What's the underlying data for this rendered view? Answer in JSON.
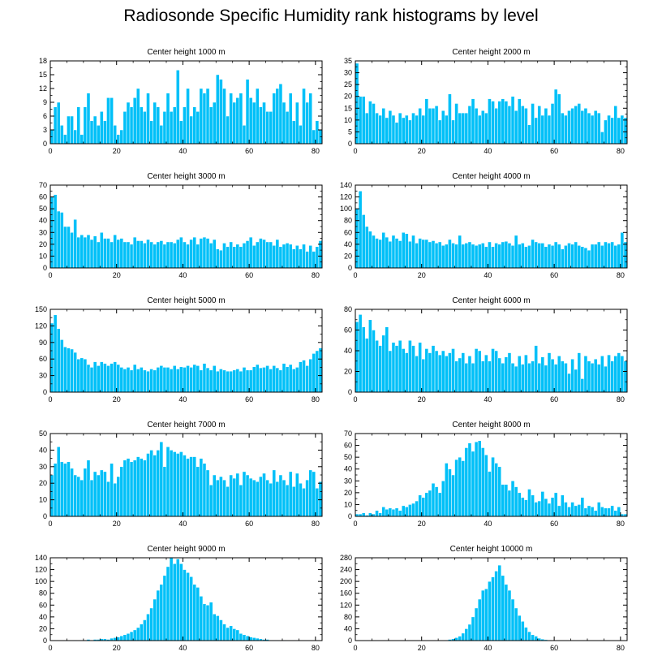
{
  "title": "Radiosonde Specific Humidity rank histograms by level",
  "colors": {
    "bar": "#00c0f8",
    "bar_edge": "#ffffff",
    "axis": "#000000"
  },
  "chart_data": [
    {
      "type": "bar",
      "title": "Center height 1000 m",
      "xlabel": "",
      "ylabel": "",
      "xlim": [
        0,
        82
      ],
      "ylim": [
        0,
        18
      ],
      "xticks": [
        0,
        20,
        40,
        60,
        80
      ],
      "yticks": [
        0,
        3,
        6,
        9,
        12,
        15,
        18
      ],
      "x_start": 0,
      "values": [
        3,
        8,
        9,
        4,
        2,
        6,
        6,
        3,
        8,
        2,
        8,
        11,
        5,
        6,
        4,
        7,
        5,
        10,
        10,
        4,
        2,
        3,
        7,
        9,
        8,
        10,
        12,
        8,
        7,
        11,
        5,
        9,
        8,
        4,
        7,
        11,
        7,
        8,
        16,
        5,
        8,
        12,
        6,
        8,
        7,
        12,
        11,
        12,
        8,
        9,
        15,
        14,
        12,
        6,
        11,
        9,
        10,
        11,
        4,
        14,
        10,
        9,
        12,
        8,
        9,
        7,
        7,
        11,
        12,
        13,
        9,
        7,
        11,
        5,
        9,
        4,
        12,
        9,
        11,
        3,
        5,
        3
      ]
    },
    {
      "type": "bar",
      "title": "Center height 2000 m",
      "xlabel": "",
      "ylabel": "",
      "xlim": [
        0,
        82
      ],
      "ylim": [
        0,
        35
      ],
      "xticks": [
        0,
        20,
        40,
        60,
        80
      ],
      "yticks": [
        0,
        5,
        10,
        15,
        20,
        25,
        30,
        35
      ],
      "x_start": 0,
      "values": [
        34,
        20,
        20,
        13,
        18,
        17,
        13,
        12,
        15,
        11,
        14,
        12,
        9,
        13,
        11,
        12,
        10,
        13,
        12,
        15,
        12,
        19,
        15,
        15,
        16,
        10,
        14,
        12,
        21,
        10,
        17,
        13,
        13,
        13,
        16,
        19,
        15,
        12,
        14,
        13,
        19,
        18,
        15,
        18,
        19,
        18,
        16,
        20,
        14,
        19,
        16,
        15,
        8,
        17,
        11,
        16,
        12,
        15,
        12,
        17,
        23,
        21,
        13,
        12,
        14,
        15,
        16,
        17,
        14,
        15,
        13,
        12,
        14,
        13,
        5,
        10,
        12,
        11,
        16,
        11,
        12,
        11
      ]
    },
    {
      "type": "bar",
      "title": "Center height 3000 m",
      "xlabel": "",
      "ylabel": "",
      "xlim": [
        0,
        82
      ],
      "ylim": [
        0,
        70
      ],
      "xticks": [
        0,
        20,
        40,
        60,
        80
      ],
      "yticks": [
        0,
        10,
        20,
        30,
        40,
        50,
        60,
        70
      ],
      "x_start": 0,
      "values": [
        60,
        62,
        48,
        47,
        35,
        35,
        30,
        41,
        26,
        28,
        26,
        28,
        24,
        27,
        22,
        30,
        25,
        25,
        22,
        28,
        24,
        25,
        22,
        22,
        20,
        26,
        23,
        23,
        21,
        24,
        22,
        20,
        22,
        23,
        20,
        22,
        22,
        21,
        24,
        26,
        22,
        20,
        24,
        26,
        20,
        25,
        26,
        25,
        21,
        24,
        16,
        15,
        21,
        18,
        22,
        18,
        20,
        18,
        21,
        23,
        26,
        19,
        22,
        25,
        24,
        22,
        22,
        19,
        24,
        18,
        20,
        21,
        20,
        16,
        19,
        16,
        20,
        14,
        19,
        14,
        18,
        23
      ]
    },
    {
      "type": "bar",
      "title": "Center height 4000 m",
      "xlabel": "",
      "ylabel": "",
      "xlim": [
        0,
        82
      ],
      "ylim": [
        0,
        140
      ],
      "xticks": [
        0,
        20,
        40,
        60,
        80
      ],
      "yticks": [
        0,
        20,
        40,
        60,
        80,
        100,
        120,
        140
      ],
      "x_start": 0,
      "values": [
        100,
        130,
        90,
        70,
        62,
        55,
        50,
        48,
        60,
        52,
        45,
        55,
        50,
        46,
        60,
        58,
        45,
        55,
        42,
        50,
        48,
        48,
        44,
        46,
        42,
        44,
        38,
        40,
        48,
        42,
        40,
        55,
        40,
        42,
        44,
        40,
        38,
        40,
        42,
        36,
        44,
        36,
        42,
        40,
        44,
        45,
        42,
        38,
        55,
        40,
        42,
        36,
        38,
        48,
        44,
        42,
        42,
        36,
        40,
        38,
        44,
        40,
        32,
        38,
        42,
        40,
        44,
        38,
        36,
        34,
        30,
        40,
        40,
        44,
        38,
        44,
        42,
        44,
        38,
        40,
        60,
        44
      ]
    },
    {
      "type": "bar",
      "title": "Center height 5000 m",
      "xlabel": "",
      "ylabel": "",
      "xlim": [
        0,
        82
      ],
      "ylim": [
        0,
        150
      ],
      "xticks": [
        0,
        20,
        40,
        60,
        80
      ],
      "yticks": [
        0,
        30,
        60,
        90,
        120,
        150
      ],
      "x_start": 0,
      "values": [
        125,
        140,
        115,
        95,
        82,
        80,
        78,
        72,
        60,
        62,
        60,
        50,
        45,
        55,
        48,
        55,
        52,
        48,
        52,
        55,
        50,
        45,
        42,
        45,
        40,
        50,
        42,
        45,
        40,
        38,
        42,
        40,
        45,
        48,
        45,
        45,
        42,
        48,
        42,
        46,
        45,
        48,
        45,
        50,
        48,
        40,
        52,
        44,
        40,
        48,
        38,
        42,
        40,
        38,
        38,
        40,
        42,
        38,
        45,
        40,
        40,
        46,
        50,
        44,
        45,
        48,
        42,
        48,
        44,
        40,
        52,
        46,
        50,
        42,
        45,
        55,
        58,
        48,
        60,
        70,
        75,
        80
      ]
    },
    {
      "type": "bar",
      "title": "Center height 6000 m",
      "xlabel": "",
      "ylabel": "",
      "xlim": [
        0,
        82
      ],
      "ylim": [
        0,
        80
      ],
      "xticks": [
        0,
        20,
        40,
        60,
        80
      ],
      "yticks": [
        0,
        20,
        40,
        60,
        80
      ],
      "x_start": 0,
      "values": [
        68,
        75,
        63,
        52,
        70,
        60,
        50,
        45,
        55,
        63,
        40,
        48,
        45,
        50,
        42,
        38,
        50,
        45,
        35,
        48,
        32,
        42,
        38,
        45,
        40,
        36,
        40,
        35,
        38,
        42,
        30,
        33,
        38,
        28,
        35,
        28,
        42,
        40,
        30,
        36,
        30,
        42,
        40,
        33,
        28,
        34,
        38,
        28,
        25,
        35,
        27,
        36,
        28,
        30,
        45,
        28,
        34,
        26,
        38,
        32,
        27,
        35,
        30,
        28,
        18,
        32,
        22,
        38,
        13,
        35,
        30,
        28,
        32,
        27,
        35,
        25,
        36,
        30,
        35,
        38,
        35,
        30
      ]
    },
    {
      "type": "bar",
      "title": "Center height 7000 m",
      "xlabel": "",
      "ylabel": "",
      "xlim": [
        0,
        82
      ],
      "ylim": [
        0,
        50
      ],
      "xticks": [
        0,
        20,
        40,
        60,
        80
      ],
      "yticks": [
        0,
        10,
        20,
        30,
        40,
        50
      ],
      "x_start": 0,
      "values": [
        25,
        32,
        42,
        33,
        32,
        33,
        29,
        25,
        24,
        22,
        29,
        34,
        22,
        27,
        25,
        28,
        27,
        21,
        32,
        20,
        24,
        30,
        34,
        35,
        33,
        34,
        36,
        35,
        34,
        38,
        40,
        37,
        40,
        45,
        30,
        42,
        40,
        39,
        38,
        39,
        37,
        35,
        36,
        36,
        30,
        35,
        32,
        28,
        19,
        25,
        22,
        24,
        22,
        18,
        25,
        23,
        26,
        19,
        27,
        25,
        23,
        22,
        21,
        24,
        26,
        22,
        20,
        28,
        21,
        25,
        22,
        19,
        27,
        18,
        26,
        20,
        17,
        22,
        28,
        27,
        17,
        21
      ]
    },
    {
      "type": "bar",
      "title": "Center height 8000 m",
      "xlabel": "",
      "ylabel": "",
      "xlim": [
        0,
        82
      ],
      "ylim": [
        0,
        70
      ],
      "xticks": [
        0,
        20,
        40,
        60,
        80
      ],
      "yticks": [
        0,
        10,
        20,
        30,
        40,
        50,
        60,
        70
      ],
      "x_start": 0,
      "values": [
        2,
        2,
        3,
        1,
        3,
        2,
        5,
        3,
        8,
        6,
        7,
        6,
        7,
        5,
        9,
        8,
        10,
        11,
        13,
        18,
        16,
        20,
        22,
        28,
        25,
        20,
        30,
        45,
        40,
        35,
        48,
        50,
        47,
        58,
        62,
        55,
        63,
        64,
        58,
        52,
        38,
        50,
        45,
        42,
        27,
        27,
        22,
        30,
        25,
        20,
        16,
        14,
        23,
        18,
        12,
        13,
        21,
        15,
        11,
        16,
        20,
        9,
        18,
        12,
        8,
        12,
        9,
        10,
        16,
        7,
        9,
        8,
        5,
        12,
        8,
        7,
        7,
        9,
        5,
        8,
        2,
        2
      ]
    },
    {
      "type": "bar",
      "title": "Center height 9000 m",
      "xlabel": "",
      "ylabel": "",
      "xlim": [
        0,
        82
      ],
      "ylim": [
        0,
        140
      ],
      "xticks": [
        0,
        20,
        40,
        60,
        80
      ],
      "yticks": [
        0,
        20,
        40,
        60,
        80,
        100,
        120,
        140
      ],
      "x_start": 0,
      "values": [
        0,
        0,
        0,
        0,
        0,
        0,
        0,
        1,
        0,
        1,
        1,
        2,
        1,
        2,
        2,
        3,
        3,
        2,
        4,
        5,
        6,
        8,
        10,
        12,
        15,
        18,
        22,
        28,
        35,
        45,
        55,
        70,
        85,
        95,
        110,
        125,
        140,
        130,
        138,
        130,
        120,
        115,
        108,
        95,
        90,
        75,
        62,
        60,
        65,
        45,
        42,
        35,
        28,
        22,
        25,
        20,
        18,
        12,
        10,
        8,
        6,
        5,
        4,
        3,
        2,
        2,
        1,
        1,
        1,
        0,
        1,
        0,
        0,
        0,
        0,
        0,
        0,
        0,
        0,
        0,
        0,
        0
      ]
    },
    {
      "type": "bar",
      "title": "Center height 10000 m",
      "xlabel": "",
      "ylabel": "",
      "xlim": [
        0,
        82
      ],
      "ylim": [
        0,
        280
      ],
      "xticks": [
        0,
        20,
        40,
        60,
        80
      ],
      "yticks": [
        0,
        40,
        80,
        120,
        160,
        200,
        240,
        280
      ],
      "x_start": 0,
      "values": [
        0,
        0,
        0,
        0,
        0,
        0,
        0,
        0,
        0,
        0,
        0,
        0,
        0,
        0,
        0,
        0,
        0,
        0,
        0,
        0,
        0,
        0,
        0,
        0,
        0,
        0,
        1,
        2,
        4,
        6,
        10,
        15,
        25,
        40,
        55,
        80,
        110,
        140,
        170,
        175,
        200,
        215,
        235,
        255,
        220,
        190,
        170,
        140,
        110,
        85,
        65,
        45,
        30,
        20,
        15,
        8,
        5,
        3,
        2,
        1,
        1,
        0,
        0,
        0,
        0,
        0,
        0,
        0,
        0,
        0,
        0,
        0,
        0,
        0,
        0,
        0,
        0,
        0,
        0,
        0,
        0,
        0
      ]
    }
  ]
}
